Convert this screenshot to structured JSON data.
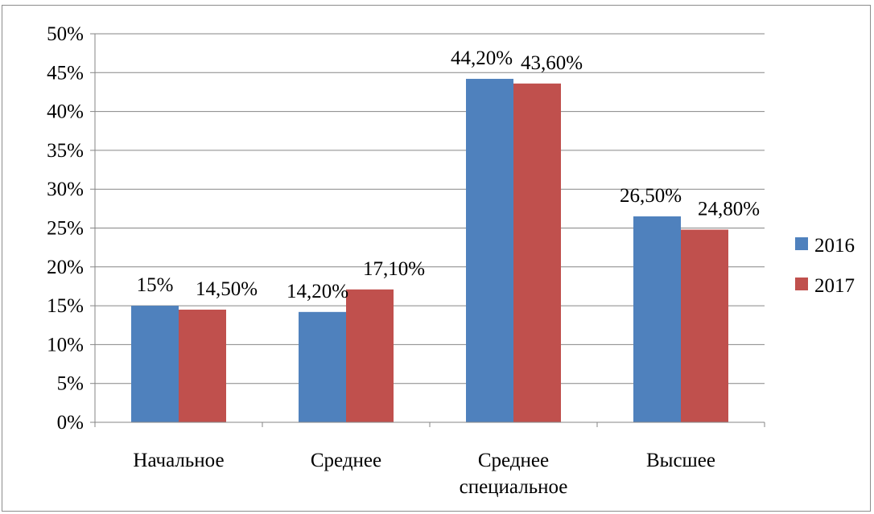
{
  "chart_data": {
    "type": "bar",
    "categories": [
      "Начальное",
      "Среднее",
      "Среднее\nспециальное",
      "Высшее"
    ],
    "series": [
      {
        "name": "2016",
        "values": [
          15.0,
          14.2,
          44.2,
          26.5
        ],
        "labels": [
          "15%",
          "14,20%",
          "44,20%",
          "26,50%"
        ],
        "color": "#4f81bd"
      },
      {
        "name": "2017",
        "values": [
          14.5,
          17.1,
          43.6,
          24.8
        ],
        "labels": [
          "14,50%",
          "17,10%",
          "43,60%",
          "24,80%"
        ],
        "color": "#c0504d"
      }
    ],
    "yticks": [
      "0%",
      "5%",
      "10%",
      "15%",
      "20%",
      "25%",
      "30%",
      "35%",
      "40%",
      "45%",
      "50%"
    ],
    "ylim": [
      0,
      50
    ],
    "grid": true,
    "legend_position": "right"
  }
}
